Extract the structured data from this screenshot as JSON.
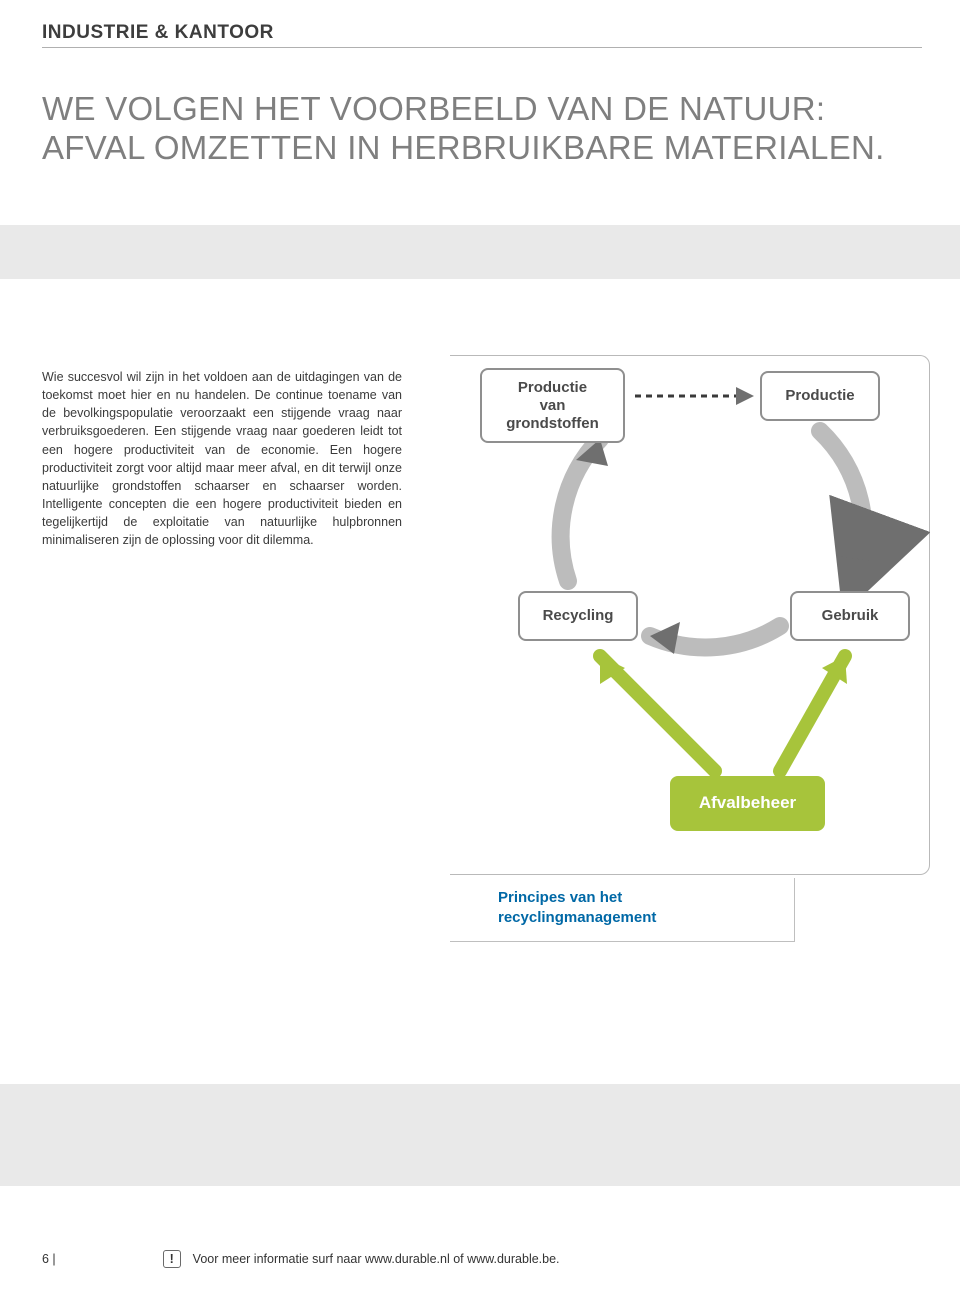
{
  "header": {
    "category": "INDUSTRIE & KANTOOR"
  },
  "title": {
    "line1": "WE VOLGEN HET VOORBEELD VAN DE NATUUR:",
    "line2": "AFVAL OMZETTEN IN HERBRUIKBARE MATERIALEN."
  },
  "body": {
    "text": "Wie succesvol wil zijn in het voldoen aan de uitdagingen van de toekomst moet hier en nu handelen. De continue toename van de bevolkingspopulatie veroorzaakt een stijgende vraag naar verbruiksgoederen. Een stijgende vraag naar goederen leidt tot een hogere productiviteit van de economie. Een hogere productiviteit zorgt voor altijd maar meer afval, en dit terwijl onze natuurlijke grondstoffen schaarser en schaarser worden. Intelligente concepten die een hogere productiviteit bieden en tegelijkertijd de exploitatie van natuurlijke hulpbronnen minimaliseren zijn de oplossing voor dit dilemma."
  },
  "diagram": {
    "nodes": {
      "grondstoffen": "Productie\nvan\ngrondstoffen",
      "productie": "Productie",
      "recycling": "Recycling",
      "gebruik": "Gebruik",
      "afvalbeheer": "Afvalbeheer"
    },
    "colors": {
      "grey_border": "#8f8f8f",
      "grey_text": "#4a4a4a",
      "green": "#a7c43b",
      "arrow_grey": "#9d9d9d",
      "arrow_grey_fill": "#bcbcbc",
      "arrow_green": "#a7c43b"
    },
    "caption": "Principes van het\nrecyclingmanagement"
  },
  "footer": {
    "page": "6 |",
    "info_icon": "!",
    "info_text": "Voor meer informatie surf naar www.durable.nl of www.durable.be."
  }
}
